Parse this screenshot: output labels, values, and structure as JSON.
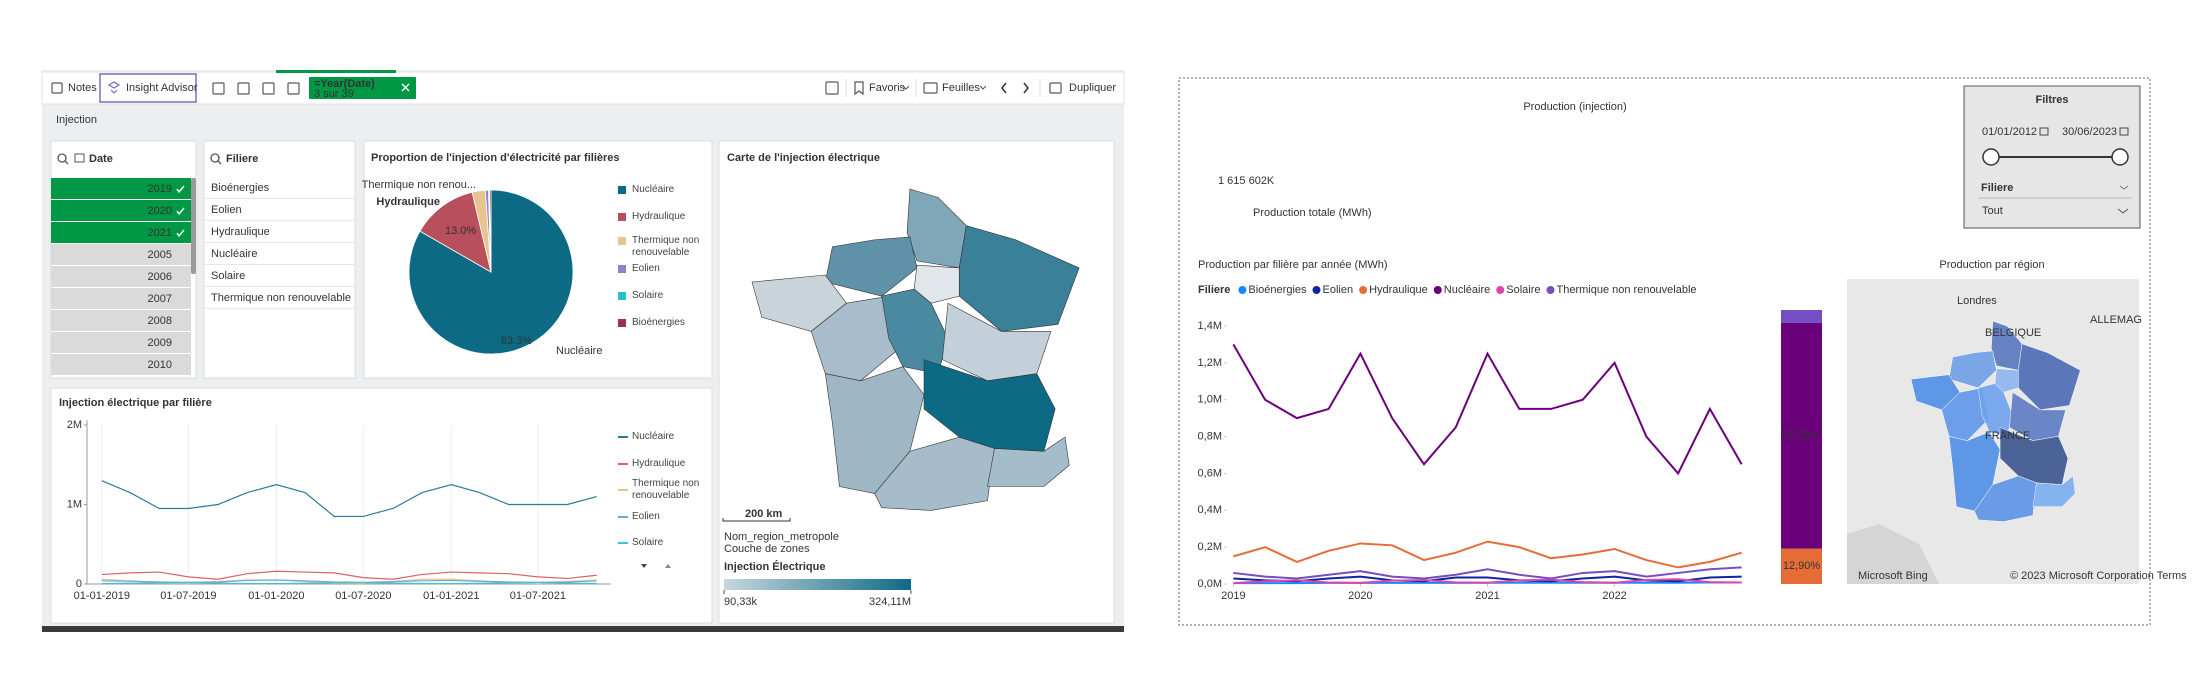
{
  "qlik": {
    "toolbar": {
      "notes": "Notes",
      "insight_advisor": "Insight Advisor",
      "selection": {
        "field": "=Year(Date)",
        "count": "3 sur 39"
      },
      "favoris": "Favoris",
      "feuilles": "Feuilles",
      "dupliquer": "Dupliquer"
    },
    "sheet_title": "Injection",
    "date_filter": {
      "label": "Date",
      "items": [
        {
          "label": "2019",
          "selected": true
        },
        {
          "label": "2020",
          "selected": true
        },
        {
          "label": "2021",
          "selected": true
        },
        {
          "label": "2005",
          "selected": false
        },
        {
          "label": "2006",
          "selected": false
        },
        {
          "label": "2007",
          "selected": false
        },
        {
          "label": "2008",
          "selected": false
        },
        {
          "label": "2009",
          "selected": false
        },
        {
          "label": "2010",
          "selected": false
        }
      ]
    },
    "filiere_filter": {
      "label": "Filiere",
      "items": [
        "Bioénergies",
        "Eolien",
        "Hydraulique",
        "Nucléaire",
        "Solaire",
        "Thermique non renouvelable"
      ]
    },
    "pie_chart": {
      "type": "pie",
      "title": "Proportion de l'injection d'électricité par filières",
      "categories": [
        "Nucléaire",
        "Hydraulique",
        "Thermique non renouvelable",
        "Eolien",
        "Solaire",
        "Bioénergies"
      ],
      "values": [
        83.3,
        13.0,
        2.6,
        0.6,
        0.2,
        0.3
      ],
      "value_labels": [
        "83.3%",
        "13.0%",
        null,
        null,
        null,
        null
      ],
      "outside_labels": [
        "Nucléaire",
        "Hydraulique",
        "Thermique non renou...",
        null,
        null,
        null
      ],
      "colors": [
        "#0d6a84",
        "#b84f5c",
        "#e8c48e",
        "#8e83c9",
        "#22c1c8",
        "#9b2f57"
      ]
    },
    "line_chart": {
      "type": "line",
      "title": "Injection électrique par filière",
      "x": [
        "01-01-2019",
        "01-03-2019",
        "01-05-2019",
        "01-07-2019",
        "01-09-2019",
        "01-11-2019",
        "01-01-2020",
        "01-03-2020",
        "01-05-2020",
        "01-07-2020",
        "01-09-2020",
        "01-11-2020",
        "01-01-2021",
        "01-03-2021",
        "01-05-2021",
        "01-07-2021",
        "01-09-2021",
        "01-11-2021"
      ],
      "xlim": [
        "01-12-2018",
        "01-12-2021"
      ],
      "xticks": [
        "01-01-2019",
        "01-07-2019",
        "01-01-2020",
        "01-07-2020",
        "01-01-2021",
        "01-07-2021"
      ],
      "ylim": [
        0,
        2000000
      ],
      "yticks": [
        0,
        {
          "value": 1000000,
          "label": "1M"
        },
        {
          "value": 2000000,
          "label": "2M"
        }
      ],
      "grid": true,
      "series": [
        {
          "name": "Nucléaire",
          "color": "#2c7a9a",
          "values": [
            1300000,
            1150000,
            950000,
            950000,
            1000000,
            1150000,
            1250000,
            1150000,
            850000,
            850000,
            950000,
            1150000,
            1250000,
            1150000,
            1000000,
            1000000,
            1000000,
            1100000
          ]
        },
        {
          "name": "Hydraulique",
          "color": "#d9626b",
          "values": [
            120000,
            140000,
            150000,
            90000,
            60000,
            130000,
            160000,
            150000,
            140000,
            80000,
            60000,
            120000,
            150000,
            140000,
            130000,
            90000,
            70000,
            110000
          ]
        },
        {
          "name": "Thermique non renouvelable",
          "color": "#edc38c",
          "values": [
            60000,
            40000,
            20000,
            20000,
            30000,
            50000,
            50000,
            30000,
            10000,
            10000,
            30000,
            60000,
            60000,
            40000,
            20000,
            20000,
            30000,
            50000
          ]
        },
        {
          "name": "Eolien",
          "color": "#6aa8d6",
          "values": [
            40000,
            35000,
            25000,
            20000,
            25000,
            45000,
            50000,
            40000,
            25000,
            20000,
            30000,
            40000,
            45000,
            35000,
            25000,
            20000,
            25000,
            40000
          ]
        },
        {
          "name": "Solaire",
          "color": "#3cc4d4",
          "values": [
            5000,
            10000,
            15000,
            18000,
            12000,
            6000,
            5000,
            10000,
            16000,
            18000,
            12000,
            6000,
            5000,
            10000,
            16000,
            18000,
            12000,
            6000
          ]
        }
      ]
    },
    "map": {
      "title": "Carte de l'injection électrique",
      "scale": "200 km",
      "layer_name": "Nom_region_metropole",
      "layer_type": "Couche de zones",
      "legend_title": "Injection Électrique",
      "legend_min": {
        "value": 90330,
        "label": "90,33k"
      },
      "legend_max": {
        "value": 324110000,
        "label": "324,11M"
      },
      "color_low": "#c8d6df",
      "color_high": "#0d6a84"
    }
  },
  "powerbi": {
    "title": "Production (injection)",
    "kpi": {
      "value": "1 615 602K",
      "label": "Production totale (MWh)"
    },
    "filters": {
      "title": "Filtres",
      "start": "01/01/2012",
      "end": "30/06/2023",
      "field": "Filiere",
      "field_value": "Tout"
    },
    "line_chart": {
      "type": "line",
      "title": "Production par filière par année (MWh)",
      "legend_title": "Filiere",
      "x": [
        2019,
        2019.25,
        2019.5,
        2019.75,
        2020,
        2020.25,
        2020.5,
        2020.75,
        2021,
        2021.25,
        2021.5,
        2021.75,
        2022,
        2022.25,
        2022.5,
        2022.75,
        2023
      ],
      "xlim": [
        2018.95,
        2023.05
      ],
      "xticks": [
        2019,
        2020,
        2021,
        2022
      ],
      "ylim": [
        0,
        1400000
      ],
      "yticks": [
        {
          "value": 0,
          "label": "0,0M"
        },
        {
          "value": 200000,
          "label": "0,2M"
        },
        {
          "value": 400000,
          "label": "0,4M"
        },
        {
          "value": 600000,
          "label": "0,6M"
        },
        {
          "value": 800000,
          "label": "0,8M"
        },
        {
          "value": 1000000,
          "label": "1,0M"
        },
        {
          "value": 1200000,
          "label": "1,2M"
        },
        {
          "value": 1400000,
          "label": "1,4M"
        }
      ],
      "grid": false,
      "series": [
        {
          "name": "Bioénergies",
          "color": "#118dff",
          "values": [
            5000,
            5000,
            5000,
            6000,
            6000,
            6000,
            6000,
            6000,
            7000,
            7000,
            7000,
            7000,
            7000,
            7000,
            7000,
            8000,
            8000
          ]
        },
        {
          "name": "Eolien",
          "color": "#12239e",
          "values": [
            30000,
            20000,
            15000,
            30000,
            40000,
            20000,
            15000,
            35000,
            35000,
            20000,
            15000,
            30000,
            40000,
            20000,
            15000,
            35000,
            40000
          ]
        },
        {
          "name": "Hydraulique",
          "color": "#e66c37",
          "values": [
            150000,
            200000,
            120000,
            180000,
            220000,
            210000,
            130000,
            170000,
            230000,
            200000,
            140000,
            160000,
            190000,
            130000,
            90000,
            120000,
            170000
          ]
        },
        {
          "name": "Nucléaire",
          "color": "#6b007b",
          "values": [
            1300000,
            1000000,
            900000,
            950000,
            1250000,
            900000,
            650000,
            850000,
            1250000,
            950000,
            950000,
            1000000,
            1200000,
            800000,
            600000,
            950000,
            650000
          ]
        },
        {
          "name": "Solaire",
          "color": "#e044a7",
          "values": [
            5000,
            15000,
            20000,
            8000,
            6000,
            18000,
            22000,
            9000,
            7000,
            20000,
            24000,
            10000,
            7000,
            22000,
            26000,
            10000,
            8000
          ]
        },
        {
          "name": "Thermique non renouvelable",
          "color": "#744ec2",
          "values": [
            60000,
            40000,
            30000,
            50000,
            70000,
            40000,
            30000,
            50000,
            80000,
            50000,
            30000,
            60000,
            70000,
            40000,
            60000,
            80000,
            90000
          ]
        }
      ]
    },
    "bar_chart": {
      "type": "bar",
      "stacked": true,
      "categories": [
        "Hydraulique",
        "Nucléaire",
        "Thermique non renouvelable"
      ],
      "values": [
        12.9,
        82.38,
        4.72
      ],
      "value_labels": [
        "12,90%",
        "82,38%",
        null
      ],
      "colors": [
        "#e66c37",
        "#6b007b",
        "#744ec2"
      ],
      "ylim": [
        0,
        100
      ]
    },
    "map": {
      "title": "Production par région",
      "labels": [
        "Londres",
        "BELGIQUE",
        "ALLEMAG",
        "FRANCE"
      ],
      "attribution": "Microsoft Bing",
      "copyright": "© 2023 Microsoft Corporation  Terms"
    }
  }
}
